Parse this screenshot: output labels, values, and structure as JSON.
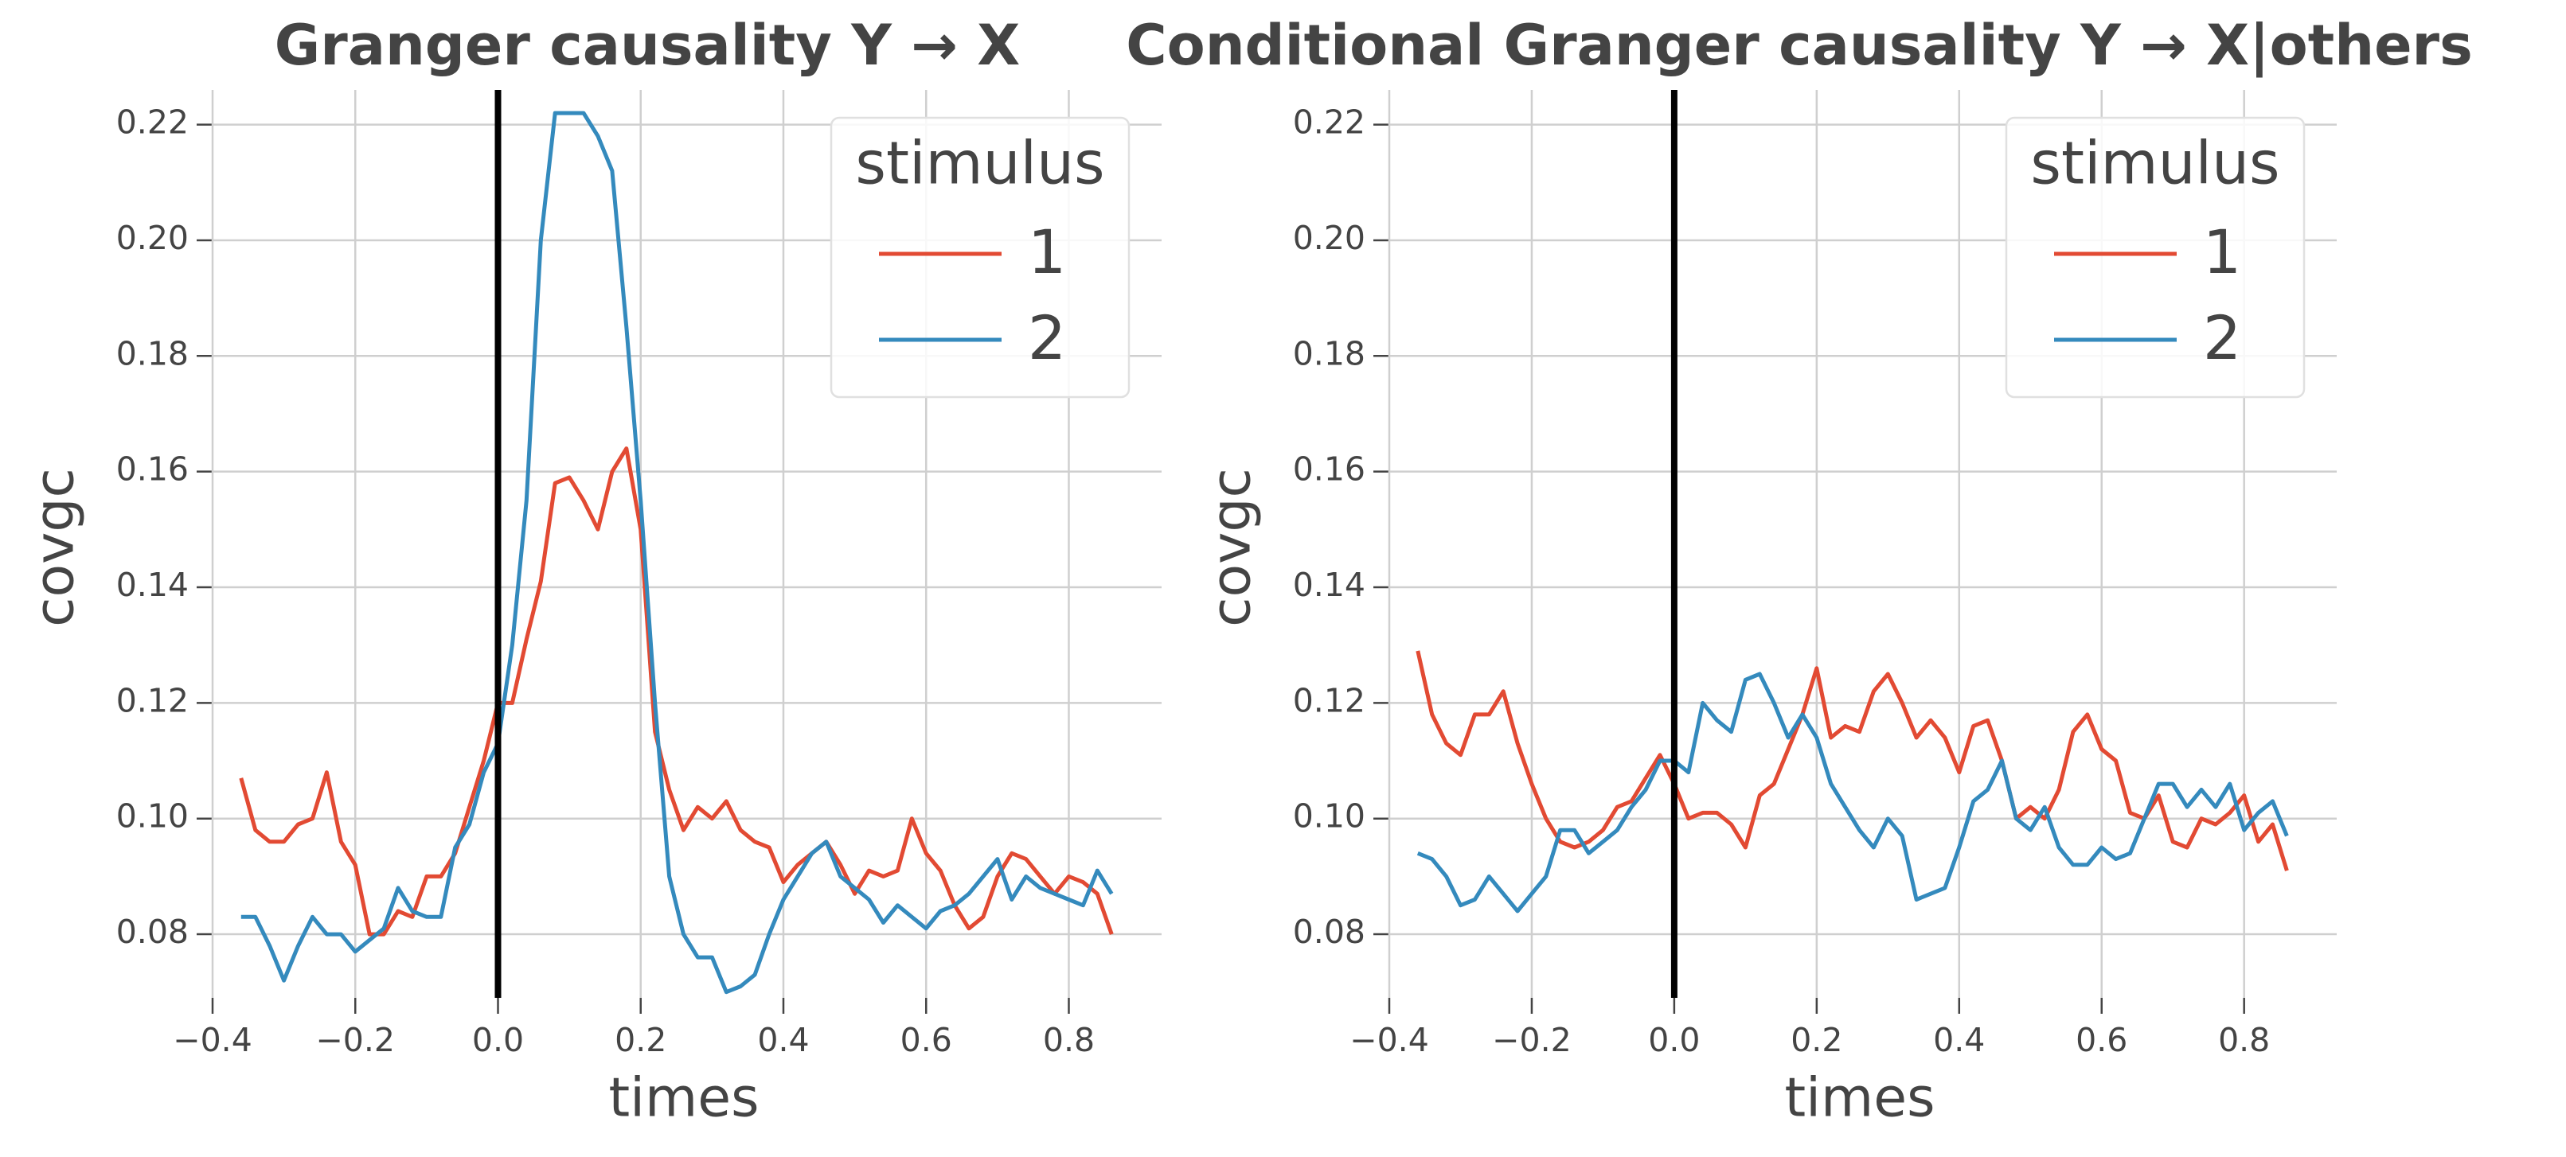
{
  "chart_data": [
    {
      "type": "line",
      "title": "Granger causality Y → X",
      "xlabel": "times",
      "ylabel": "covgc",
      "x": [
        -0.36,
        -0.34,
        -0.32,
        -0.3,
        -0.28,
        -0.26,
        -0.24,
        -0.22,
        -0.2,
        -0.18,
        -0.16,
        -0.14,
        -0.12,
        -0.1,
        -0.08,
        -0.06,
        -0.04,
        -0.02,
        0.0,
        0.02,
        0.04,
        0.06,
        0.08,
        0.1,
        0.12,
        0.14,
        0.16,
        0.18,
        0.2,
        0.22,
        0.24,
        0.26,
        0.28,
        0.3,
        0.32,
        0.34,
        0.36,
        0.38,
        0.4,
        0.42,
        0.44,
        0.46,
        0.48,
        0.5,
        0.52,
        0.54,
        0.56,
        0.58,
        0.6,
        0.62,
        0.64,
        0.66,
        0.68,
        0.7,
        0.72,
        0.74,
        0.76,
        0.78,
        0.8,
        0.82,
        0.84,
        0.86
      ],
      "series": [
        {
          "name": "1",
          "color": "#E24A33",
          "values": [
            0.107,
            0.098,
            0.096,
            0.096,
            0.099,
            0.1,
            0.108,
            0.096,
            0.092,
            0.08,
            0.08,
            0.084,
            0.083,
            0.09,
            0.09,
            0.094,
            0.102,
            0.11,
            0.12,
            0.12,
            0.131,
            0.141,
            0.158,
            0.159,
            0.155,
            0.15,
            0.16,
            0.164,
            0.15,
            0.115,
            0.105,
            0.098,
            0.102,
            0.1,
            0.103,
            0.098,
            0.096,
            0.095,
            0.089,
            0.092,
            0.094,
            0.096,
            0.092,
            0.087,
            0.091,
            0.09,
            0.091,
            0.1,
            0.094,
            0.091,
            0.085,
            0.081,
            0.083,
            0.09,
            0.094,
            0.093,
            0.09,
            0.087,
            0.09,
            0.089,
            0.087,
            0.08
          ]
        },
        {
          "name": "2",
          "color": "#348ABD",
          "values": [
            0.083,
            0.083,
            0.078,
            0.072,
            0.078,
            0.083,
            0.08,
            0.08,
            0.077,
            0.079,
            0.081,
            0.088,
            0.084,
            0.083,
            0.083,
            0.095,
            0.099,
            0.108,
            0.113,
            0.13,
            0.155,
            0.2,
            0.222,
            0.222,
            0.222,
            0.218,
            0.212,
            0.185,
            0.155,
            0.12,
            0.09,
            0.08,
            0.076,
            0.076,
            0.07,
            0.071,
            0.073,
            0.08,
            0.086,
            0.09,
            0.094,
            0.096,
            0.09,
            0.088,
            0.086,
            0.082,
            0.085,
            0.083,
            0.081,
            0.084,
            0.085,
            0.087,
            0.09,
            0.093,
            0.086,
            0.09,
            0.088,
            0.087,
            0.086,
            0.085,
            0.091,
            0.087
          ]
        }
      ],
      "xlim": [
        -0.4,
        0.93
      ],
      "ylim": [
        0.069,
        0.226
      ],
      "xticks": [
        {
          "value": -0.4,
          "label": "−0.4"
        },
        {
          "value": -0.2,
          "label": "−0.2"
        },
        {
          "value": 0,
          "label": "0.0"
        },
        0.2,
        0.4,
        0.6,
        0.8
      ],
      "yticks": [
        0.08,
        {
          "value": 0.1,
          "label": "0.10"
        },
        0.12,
        0.14,
        0.16,
        0.18,
        {
          "value": 0.2,
          "label": "0.20"
        },
        0.22
      ],
      "grid": true,
      "vline": 0,
      "legend_title": "stimulus",
      "legend_position": "upper right"
    },
    {
      "type": "line",
      "title": "Conditional Granger causality Y → X|others",
      "xlabel": "times",
      "ylabel": "covgc",
      "x": [
        -0.36,
        -0.34,
        -0.32,
        -0.3,
        -0.28,
        -0.26,
        -0.24,
        -0.22,
        -0.2,
        -0.18,
        -0.16,
        -0.14,
        -0.12,
        -0.1,
        -0.08,
        -0.06,
        -0.04,
        -0.02,
        0.0,
        0.02,
        0.04,
        0.06,
        0.08,
        0.1,
        0.12,
        0.14,
        0.16,
        0.18,
        0.2,
        0.22,
        0.24,
        0.26,
        0.28,
        0.3,
        0.32,
        0.34,
        0.36,
        0.38,
        0.4,
        0.42,
        0.44,
        0.46,
        0.48,
        0.5,
        0.52,
        0.54,
        0.56,
        0.58,
        0.6,
        0.62,
        0.64,
        0.66,
        0.68,
        0.7,
        0.72,
        0.74,
        0.76,
        0.78,
        0.8,
        0.82,
        0.84,
        0.86
      ],
      "series": [
        {
          "name": "1",
          "color": "#E24A33",
          "values": [
            0.129,
            0.118,
            0.113,
            0.111,
            0.118,
            0.118,
            0.122,
            0.113,
            0.106,
            0.1,
            0.096,
            0.095,
            0.096,
            0.098,
            0.102,
            0.103,
            0.107,
            0.111,
            0.106,
            0.1,
            0.101,
            0.101,
            0.099,
            0.095,
            0.104,
            0.106,
            0.112,
            0.118,
            0.126,
            0.114,
            0.116,
            0.115,
            0.122,
            0.125,
            0.12,
            0.114,
            0.117,
            0.114,
            0.108,
            0.116,
            0.117,
            0.11,
            0.1,
            0.102,
            0.1,
            0.105,
            0.115,
            0.118,
            0.112,
            0.11,
            0.101,
            0.1,
            0.104,
            0.096,
            0.095,
            0.1,
            0.099,
            0.101,
            0.104,
            0.096,
            0.099,
            0.091
          ]
        },
        {
          "name": "2",
          "color": "#348ABD",
          "values": [
            0.094,
            0.093,
            0.09,
            0.085,
            0.086,
            0.09,
            0.087,
            0.084,
            0.087,
            0.09,
            0.098,
            0.098,
            0.094,
            0.096,
            0.098,
            0.102,
            0.105,
            0.11,
            0.11,
            0.108,
            0.12,
            0.117,
            0.115,
            0.124,
            0.125,
            0.12,
            0.114,
            0.118,
            0.114,
            0.106,
            0.102,
            0.098,
            0.095,
            0.1,
            0.097,
            0.086,
            0.087,
            0.088,
            0.095,
            0.103,
            0.105,
            0.11,
            0.1,
            0.098,
            0.102,
            0.095,
            0.092,
            0.092,
            0.095,
            0.093,
            0.094,
            0.1,
            0.106,
            0.106,
            0.102,
            0.105,
            0.102,
            0.106,
            0.098,
            0.101,
            0.103,
            0.097
          ]
        }
      ],
      "xlim": [
        -0.4,
        0.93
      ],
      "ylim": [
        0.069,
        0.226
      ],
      "xticks": [
        {
          "value": -0.4,
          "label": "−0.4"
        },
        {
          "value": -0.2,
          "label": "−0.2"
        },
        {
          "value": 0,
          "label": "0.0"
        },
        0.2,
        0.4,
        0.6,
        0.8
      ],
      "yticks": [
        0.08,
        {
          "value": 0.1,
          "label": "0.10"
        },
        0.12,
        0.14,
        0.16,
        0.18,
        {
          "value": 0.2,
          "label": "0.20"
        },
        0.22
      ],
      "grid": true,
      "vline": 0,
      "legend_title": "stimulus",
      "legend_position": "upper right"
    }
  ]
}
